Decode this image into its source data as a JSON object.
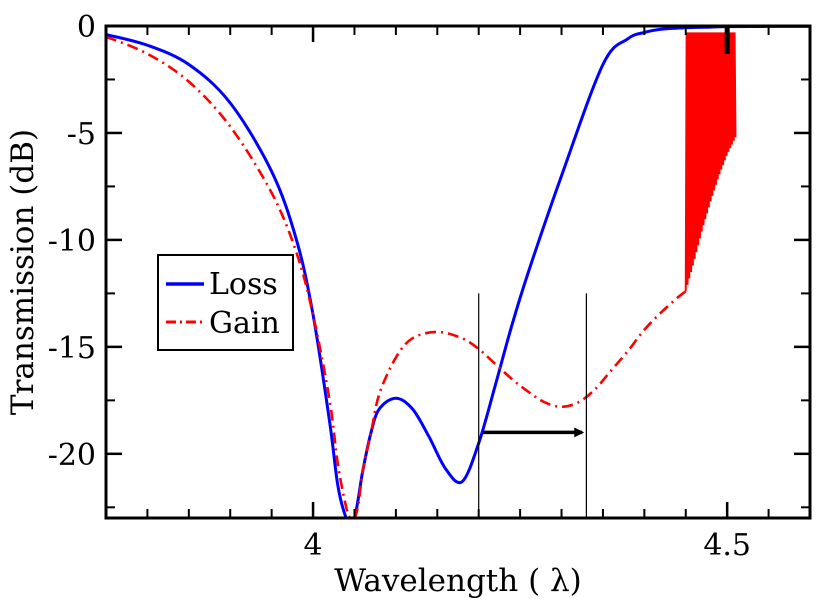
{
  "chart_data": {
    "type": "line",
    "title": "",
    "xlabel": "Wavelength ( λ)",
    "ylabel": "Transmission (dB)",
    "xlim": [
      3.75,
      4.6
    ],
    "ylim": [
      -23,
      0
    ],
    "x_ticks": [
      {
        "value": 4.0,
        "label": "4"
      },
      {
        "value": 4.5,
        "label": "4.5"
      }
    ],
    "x_minor_ticks": [
      3.75,
      3.8,
      3.85,
      3.9,
      3.95,
      4.05,
      4.1,
      4.15,
      4.2,
      4.25,
      4.3,
      4.35,
      4.4,
      4.45,
      4.55,
      4.6
    ],
    "y_ticks": [
      {
        "value": 0,
        "label": "0"
      },
      {
        "value": -5,
        "label": "-5"
      },
      {
        "value": -10,
        "label": "-10"
      },
      {
        "value": -15,
        "label": "-15"
      },
      {
        "value": -20,
        "label": "-20"
      }
    ],
    "y_minor_ticks": [
      -2.5,
      -7.5,
      -12.5,
      -17.5,
      -22.5
    ],
    "legend": {
      "placement": "middle-left",
      "entries": [
        {
          "label": "Loss",
          "series": "loss"
        },
        {
          "label": "Gain",
          "series": "gain"
        }
      ]
    },
    "series": [
      {
        "id": "loss",
        "name": "Loss",
        "color": "#0000ff",
        "style": "solid",
        "x": [
          3.75,
          3.8,
          3.85,
          3.9,
          3.95,
          3.98,
          4.0,
          4.02,
          4.03,
          4.04,
          4.045,
          4.05,
          4.055,
          4.06,
          4.07,
          4.08,
          4.1,
          4.12,
          4.14,
          4.16,
          4.18,
          4.2,
          4.22,
          4.24,
          4.26,
          4.3,
          4.35,
          4.38,
          4.4,
          4.42,
          4.45,
          4.48,
          4.5,
          4.55,
          4.6
        ],
        "y": [
          -0.4,
          -0.9,
          -1.8,
          -3.6,
          -6.8,
          -10.0,
          -13.5,
          -18.5,
          -21.5,
          -23,
          -23,
          -23,
          -22.0,
          -20.8,
          -19.0,
          -17.9,
          -17.4,
          -17.9,
          -19.2,
          -20.7,
          -21.3,
          -19.5,
          -16.8,
          -14.0,
          -11.5,
          -7.0,
          -1.8,
          -0.6,
          -0.3,
          -0.15,
          -0.08,
          -0.05,
          -0.03,
          -0.02,
          -0.02
        ]
      },
      {
        "id": "gain",
        "name": "Gain",
        "color": "#ff0000",
        "style": "dash-dot",
        "x": [
          3.75,
          3.8,
          3.85,
          3.9,
          3.95,
          3.98,
          4.0,
          4.02,
          4.03,
          4.04,
          4.045,
          4.05,
          4.055,
          4.06,
          4.07,
          4.08,
          4.1,
          4.12,
          4.15,
          4.18,
          4.2,
          4.22,
          4.24,
          4.26,
          4.28,
          4.3,
          4.32,
          4.34,
          4.36,
          4.38,
          4.4,
          4.42,
          4.44,
          4.45
        ],
        "y": [
          -0.5,
          -1.3,
          -2.6,
          -4.7,
          -7.8,
          -10.6,
          -13.5,
          -17.5,
          -20.5,
          -22.5,
          -23,
          -23,
          -22.3,
          -20.8,
          -19.0,
          -17.2,
          -15.5,
          -14.6,
          -14.3,
          -14.6,
          -15.1,
          -15.8,
          -16.5,
          -17.1,
          -17.6,
          -17.8,
          -17.6,
          -17.0,
          -16.1,
          -15.2,
          -14.2,
          -13.4,
          -12.7,
          -12.4
        ]
      }
    ],
    "gain_oscillation": {
      "x_start": 4.45,
      "x_end": 4.51,
      "lower_envelope": [
        [
          4.45,
          -12.4
        ],
        [
          4.46,
          -11.0
        ],
        [
          4.47,
          -9.5
        ],
        [
          4.48,
          -8.2
        ],
        [
          4.49,
          -7.0
        ],
        [
          4.5,
          -6.0
        ],
        [
          4.51,
          -5.2
        ]
      ],
      "upper_value": -0.3,
      "cycles": 28
    },
    "annotations": {
      "vertical_lines": [
        {
          "x": 4.2,
          "y_top": -12.5,
          "y_bottom": -23
        },
        {
          "x": 4.33,
          "y_top": -12.5,
          "y_bottom": -23
        }
      ],
      "arrow": {
        "x_start": 4.205,
        "x_end": 4.325,
        "y": -19.0
      },
      "marker_at_top": {
        "x": 4.5,
        "y_top": 0,
        "y_bottom": -1.3
      }
    }
  }
}
